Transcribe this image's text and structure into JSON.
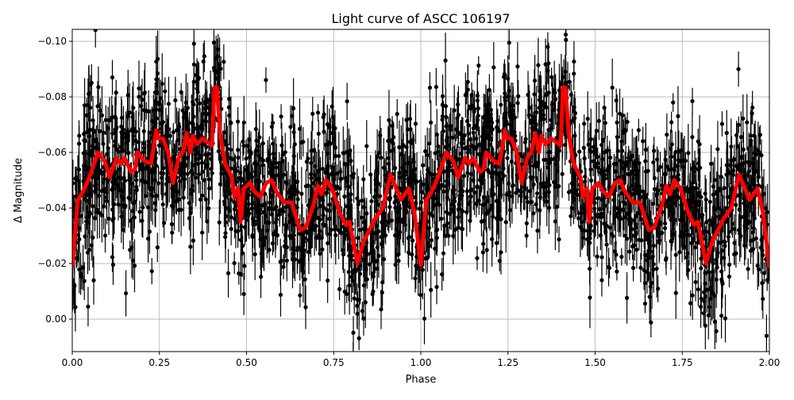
{
  "chart_data": {
    "type": "scatter",
    "title": "Light curve of ASCC 106197",
    "xlabel": "Phase",
    "ylabel": "Δ Magnitude",
    "xlim": [
      0,
      2
    ],
    "ylim": [
      0.0117,
      -0.1043
    ],
    "y_inverted": true,
    "grid": true,
    "x_ticks": [
      "0.00",
      "0.25",
      "0.50",
      "0.75",
      "1.00",
      "1.25",
      "1.50",
      "1.75",
      "2.00"
    ],
    "x_tick_values": [
      0,
      0.25,
      0.5,
      0.75,
      1,
      1.25,
      1.5,
      1.75,
      2
    ],
    "y_ticks": [
      "−0.10",
      "−0.08",
      "−0.06",
      "−0.04",
      "−0.02",
      "0.00"
    ],
    "y_tick_values": [
      -0.1,
      -0.08,
      -0.06,
      -0.04,
      -0.02,
      0.0
    ],
    "colors": {
      "points": "#000000",
      "model": "#ff0000",
      "grid": "#b0b0b0"
    },
    "series": [
      {
        "kind": "errorbar-scatter",
        "color": "#000000"
      },
      {
        "kind": "line",
        "color": "#ff0000",
        "x": [
          0,
          0.016,
          0.027,
          0.039,
          0.055,
          0.073,
          0.093,
          0.107,
          0.127,
          0.139,
          0.15,
          0.169,
          0.18,
          0.187,
          0.207,
          0.226,
          0.241,
          0.248,
          0.26,
          0.275,
          0.289,
          0.305,
          0.317,
          0.328,
          0.339,
          0.346,
          0.358,
          0.374,
          0.401,
          0.408,
          0.415,
          0.424,
          0.438,
          0.458,
          0.465,
          0.476,
          0.483,
          0.492,
          0.51,
          0.522,
          0.54,
          0.556,
          0.572,
          0.585,
          0.608,
          0.629,
          0.654,
          0.67,
          0.692,
          0.704,
          0.715,
          0.727,
          0.745,
          0.768,
          0.784,
          0.795,
          0.818,
          0.836,
          0.868,
          0.891,
          0.913,
          0.943,
          0.966,
          0.982,
          1.0,
          1.016,
          1.027,
          1.039,
          1.055,
          1.073,
          1.093,
          1.107,
          1.127,
          1.139,
          1.15,
          1.169,
          1.18,
          1.187,
          1.207,
          1.226,
          1.241,
          1.248,
          1.26,
          1.275,
          1.289,
          1.305,
          1.317,
          1.328,
          1.339,
          1.346,
          1.358,
          1.374,
          1.401,
          1.408,
          1.415,
          1.424,
          1.438,
          1.458,
          1.465,
          1.476,
          1.483,
          1.492,
          1.51,
          1.522,
          1.54,
          1.556,
          1.572,
          1.585,
          1.608,
          1.629,
          1.654,
          1.67,
          1.692,
          1.704,
          1.715,
          1.727,
          1.745,
          1.768,
          1.784,
          1.795,
          1.818,
          1.836,
          1.868,
          1.891,
          1.913,
          1.943,
          1.966,
          1.982,
          2.0
        ],
        "y": [
          -0.0184,
          -0.043,
          -0.045,
          -0.048,
          -0.053,
          -0.06,
          -0.057,
          -0.051,
          -0.058,
          -0.056,
          -0.058,
          -0.053,
          -0.054,
          -0.06,
          -0.057,
          -0.056,
          -0.068,
          -0.065,
          -0.065,
          -0.06,
          -0.049,
          -0.058,
          -0.06,
          -0.067,
          -0.06,
          -0.066,
          -0.063,
          -0.065,
          -0.0625,
          -0.0834,
          -0.0834,
          -0.067,
          -0.056,
          -0.051,
          -0.044,
          -0.047,
          -0.035,
          -0.047,
          -0.049,
          -0.046,
          -0.044,
          -0.049,
          -0.05,
          -0.046,
          -0.042,
          -0.042,
          -0.032,
          -0.033,
          -0.041,
          -0.048,
          -0.045,
          -0.05,
          -0.047,
          -0.038,
          -0.034,
          -0.035,
          -0.02,
          -0.028,
          -0.036,
          -0.04,
          -0.052,
          -0.043,
          -0.047,
          -0.038,
          -0.0195,
          -0.043,
          -0.045,
          -0.048,
          -0.053,
          -0.06,
          -0.057,
          -0.051,
          -0.058,
          -0.056,
          -0.058,
          -0.053,
          -0.054,
          -0.06,
          -0.057,
          -0.056,
          -0.068,
          -0.065,
          -0.065,
          -0.06,
          -0.049,
          -0.058,
          -0.06,
          -0.067,
          -0.06,
          -0.066,
          -0.063,
          -0.065,
          -0.0625,
          -0.0834,
          -0.0834,
          -0.067,
          -0.056,
          -0.051,
          -0.044,
          -0.047,
          -0.035,
          -0.047,
          -0.049,
          -0.046,
          -0.044,
          -0.049,
          -0.05,
          -0.046,
          -0.042,
          -0.042,
          -0.032,
          -0.033,
          -0.041,
          -0.048,
          -0.045,
          -0.05,
          -0.047,
          -0.038,
          -0.034,
          -0.035,
          -0.02,
          -0.028,
          -0.036,
          -0.04,
          -0.052,
          -0.043,
          -0.047,
          -0.038,
          -0.0184
        ]
      }
    ]
  }
}
